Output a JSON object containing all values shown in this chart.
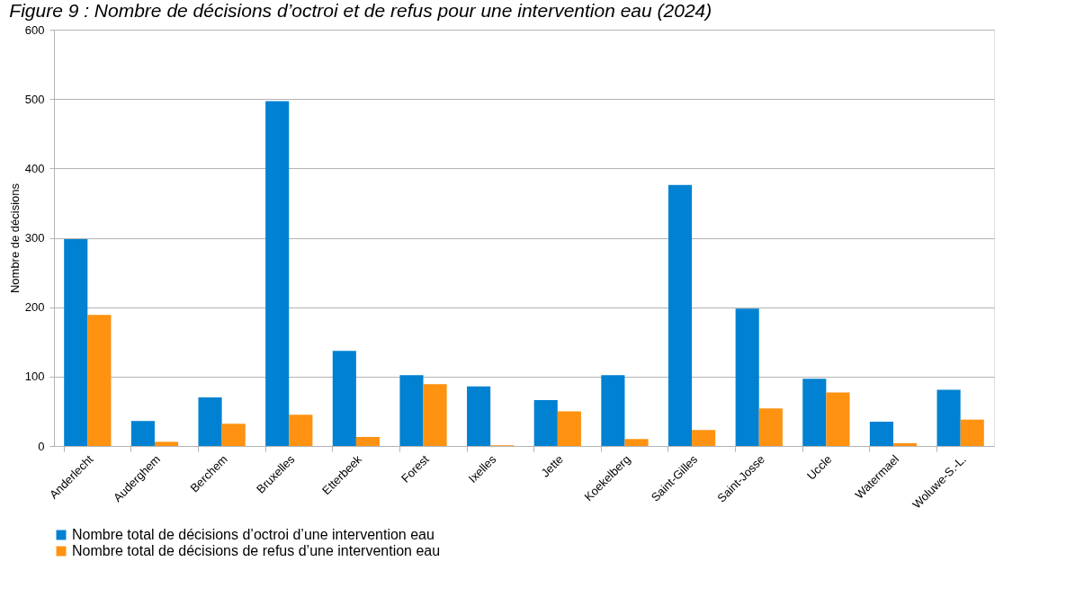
{
  "chart_data": {
    "type": "bar",
    "title": "Figure 9 : Nombre de décisions d’octroi et de refus pour une intervention eau (2024)",
    "ylabel": "Nombre de décisions",
    "categories": [
      "Anderlecht",
      "Auderghem",
      "Berchem",
      "Bruxelles",
      "Etterbeek",
      "Forest",
      "Ixelles",
      "Jette",
      "Koekelberg",
      "Saint-Gilles",
      "Saint-Josse",
      "Uccle",
      "Watermael",
      "Woluwe-S.-L."
    ],
    "series": [
      {
        "name": "Nombre total de décisions d’octroi d’une intervention eau",
        "color": "#0081d1",
        "values": [
          298,
          36,
          70,
          497,
          137,
          102,
          86,
          66,
          102,
          376,
          198,
          97,
          35,
          81
        ]
      },
      {
        "name": "Nombre total de décisions de refus d’une intervention eau",
        "color": "#ff9210",
        "values": [
          189,
          6,
          32,
          45,
          13,
          89,
          1,
          50,
          10,
          23,
          54,
          77,
          4,
          38
        ]
      }
    ],
    "ylim": [
      0,
      600
    ],
    "yticks": [
      0,
      100,
      200,
      300,
      400,
      500,
      600
    ],
    "grid": "y",
    "legend": "bottom"
  }
}
